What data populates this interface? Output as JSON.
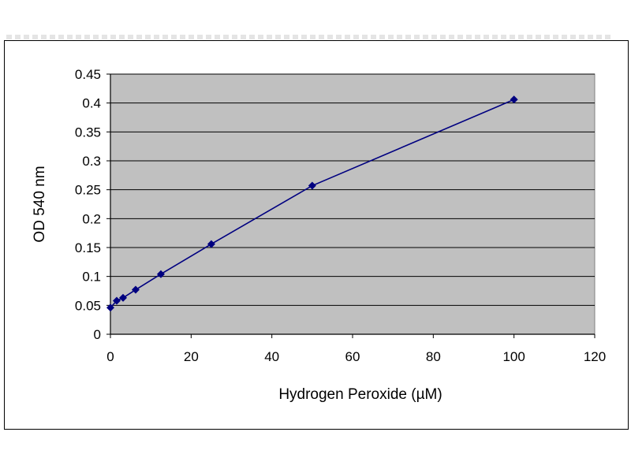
{
  "chart_data": {
    "type": "scatter",
    "title": "",
    "xlabel": "Hydrogen Peroxide (µM)",
    "ylabel": "OD 540 nm",
    "xlim": [
      0,
      120
    ],
    "ylim": [
      0,
      0.45
    ],
    "xticks": [
      "0",
      "20",
      "40",
      "60",
      "80",
      "100",
      "120"
    ],
    "yticks": [
      "0",
      "0.05",
      "0.1",
      "0.15",
      "0.2",
      "0.25",
      "0.3",
      "0.35",
      "0.4",
      "0.45"
    ],
    "grid": "horizontal",
    "legend": "none",
    "series": [
      {
        "x": [
          0,
          1.56,
          3.13,
          6.25,
          12.5,
          25,
          50,
          100
        ],
        "y": [
          0.046,
          0.058,
          0.063,
          0.077,
          0.104,
          0.156,
          0.257,
          0.406
        ],
        "marker": "diamond",
        "connected": true
      }
    ]
  },
  "colors": {
    "plot_background": "#c0c0c0",
    "gridline": "#000000",
    "series": "#000080",
    "frame": "#000000"
  }
}
